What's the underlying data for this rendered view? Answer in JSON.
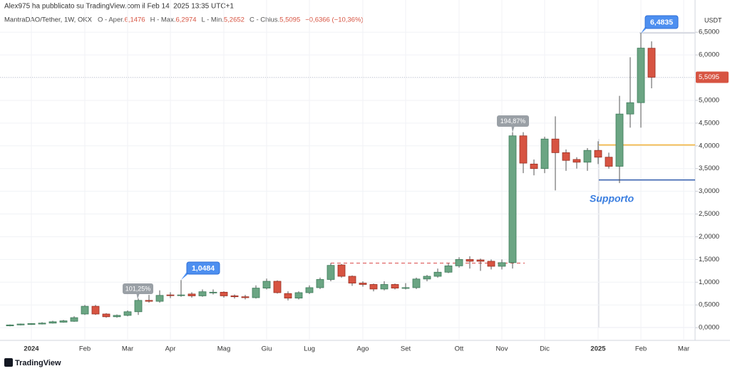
{
  "header": {
    "publisher": "Alex975 ha pubblicato su TradingView.com il Feb 14, 2025 13:35 UTC+1",
    "symbol": "MantraDAO/Tether, 1W, OKX",
    "ohlc": [
      {
        "label": "O - Aper.",
        "value": "6,1476"
      },
      {
        "label": "H - Max.",
        "value": "6,2974"
      },
      {
        "label": "L - Min.",
        "value": "5,2652"
      },
      {
        "label": "C - Chius.",
        "value": "5,5095"
      }
    ],
    "change": "−0,6366 (−10,36%)"
  },
  "footer": {
    "brand": "TradingView"
  },
  "chart_data": {
    "type": "candlestick",
    "currency": "USDT",
    "categories": [
      null,
      null,
      "2024",
      null,
      null,
      null,
      null,
      "Feb",
      null,
      null,
      null,
      "Mar",
      null,
      null,
      null,
      "Apr",
      null,
      null,
      null,
      null,
      "Mag",
      null,
      null,
      null,
      "Giu",
      null,
      null,
      null,
      "Lug",
      null,
      null,
      null,
      null,
      "Ago",
      null,
      null,
      null,
      "Set",
      null,
      null,
      null,
      null,
      "Ott",
      null,
      null,
      null,
      "Nov",
      null,
      null,
      null,
      "Dic",
      null,
      null,
      null,
      null,
      "2025",
      null,
      null,
      null,
      "Feb",
      null,
      null,
      null,
      "Mar"
    ],
    "open": [
      0.04,
      0.06,
      0.07,
      0.08,
      0.1,
      0.12,
      0.14,
      0.3,
      0.47,
      0.3,
      0.24,
      0.27,
      0.35,
      0.6,
      0.58,
      0.72,
      0.72,
      0.74,
      0.7,
      0.78,
      0.78,
      0.7,
      0.68,
      0.66,
      0.87,
      1.02,
      0.75,
      0.65,
      0.77,
      0.88,
      1.06,
      1.38,
      1.13,
      0.98,
      0.95,
      0.85,
      0.95,
      0.88,
      0.88,
      1.07,
      1.13,
      1.22,
      1.36,
      1.5,
      1.49,
      1.46,
      1.35,
      1.43,
      4.22,
      3.6,
      3.5,
      4.15,
      3.85,
      3.7,
      3.64,
      3.9,
      3.75,
      3.55,
      4.7,
      4.95,
      6.1476,
      null,
      null,
      null
    ],
    "high": [
      0.07,
      0.09,
      0.1,
      0.12,
      0.15,
      0.17,
      0.25,
      0.5,
      0.5,
      0.32,
      0.29,
      0.38,
      0.64,
      0.72,
      0.82,
      0.78,
      1.0484,
      0.78,
      0.84,
      0.84,
      0.8,
      0.73,
      0.72,
      0.93,
      1.08,
      1.04,
      0.8,
      0.8,
      0.93,
      1.1,
      1.42,
      1.4,
      1.15,
      1.02,
      0.97,
      1.02,
      0.97,
      0.98,
      1.1,
      1.16,
      1.3,
      1.42,
      1.55,
      1.57,
      1.52,
      1.5,
      1.5,
      4.3,
      4.3,
      3.7,
      4.2,
      4.65,
      3.92,
      3.75,
      3.95,
      4.1,
      3.85,
      5.1,
      5.95,
      6.4835,
      6.2974,
      null,
      null,
      null
    ],
    "low": [
      0.03,
      0.05,
      0.06,
      0.07,
      0.09,
      0.11,
      0.13,
      0.28,
      0.28,
      0.22,
      0.22,
      0.25,
      0.28,
      0.55,
      0.55,
      0.65,
      0.68,
      0.66,
      0.68,
      0.73,
      0.66,
      0.64,
      0.62,
      0.64,
      0.84,
      0.75,
      0.6,
      0.62,
      0.74,
      0.85,
      1.02,
      1.1,
      0.92,
      0.9,
      0.8,
      0.82,
      0.84,
      0.84,
      0.85,
      1.02,
      1.1,
      1.2,
      1.32,
      1.3,
      1.25,
      1.28,
      1.28,
      1.3,
      3.4,
      3.35,
      3.4,
      3.02,
      3.45,
      3.5,
      3.45,
      3.6,
      3.5,
      3.18,
      4.4,
      4.4,
      5.2652,
      null,
      null,
      null
    ],
    "close": [
      0.06,
      0.08,
      0.09,
      0.1,
      0.13,
      0.15,
      0.22,
      0.47,
      0.3,
      0.24,
      0.27,
      0.35,
      0.6,
      0.58,
      0.71,
      0.71,
      0.72,
      0.7,
      0.79,
      0.78,
      0.7,
      0.68,
      0.66,
      0.87,
      1.02,
      0.77,
      0.65,
      0.77,
      0.88,
      1.06,
      1.37,
      1.13,
      0.98,
      0.95,
      0.85,
      0.95,
      0.87,
      0.88,
      1.07,
      1.13,
      1.22,
      1.36,
      1.5,
      1.46,
      1.46,
      1.35,
      1.43,
      4.22,
      3.62,
      3.5,
      4.15,
      3.85,
      3.68,
      3.64,
      3.9,
      3.75,
      3.55,
      4.7,
      4.95,
      6.15,
      5.5095,
      null,
      null,
      null
    ],
    "up_color": "#6ba583",
    "down_color": "#d75442",
    "ylim": [
      -0.28,
      6.77
    ],
    "yticks": [
      {
        "value": 0,
        "label": "0,0000"
      },
      {
        "value": 0.5,
        "label": "0,5000"
      },
      {
        "value": 1,
        "label": "1,0000"
      },
      {
        "value": 1.5,
        "label": "1,5000"
      },
      {
        "value": 2,
        "label": "2,0000"
      },
      {
        "value": 2.5,
        "label": "2,5000"
      },
      {
        "value": 3,
        "label": "3,0000"
      },
      {
        "value": 3.5,
        "label": "3,5000"
      },
      {
        "value": 4,
        "label": "4,0000"
      },
      {
        "value": 4.5,
        "label": "4,5000"
      },
      {
        "value": 5,
        "label": "5,0000"
      },
      {
        "value": 5.5,
        "label": "5,5000"
      },
      {
        "value": 6,
        "label": "6,0000"
      },
      {
        "value": 6.5,
        "label": "6,5000"
      }
    ],
    "grid": true,
    "last_price": {
      "value": 5.5095,
      "label": "5,5095"
    },
    "lines": [
      {
        "value": 4.02,
        "color": "#f2b33d"
      },
      {
        "value": 3.25,
        "color": "#3c64b1"
      },
      {
        "value": 1.42,
        "color": "#e06666",
        "style": "dashed"
      },
      {
        "value": 6.4835,
        "color": "#cfd3dc"
      }
    ],
    "annotations": [
      {
        "value": 6.4835,
        "label": "6,4835",
        "color": "#4d8ff0"
      },
      {
        "value": 1.0484,
        "label": "1,0484",
        "color": "#4d8ff0"
      },
      {
        "value": 101.25,
        "label": "101,25%",
        "color": "#9aa0a6"
      },
      {
        "value": 194.87,
        "label": "194,87%",
        "color": "#9aa0a6"
      }
    ],
    "text_annotations": [
      {
        "label": "Supporto",
        "color": "#3a7ee0"
      }
    ]
  }
}
